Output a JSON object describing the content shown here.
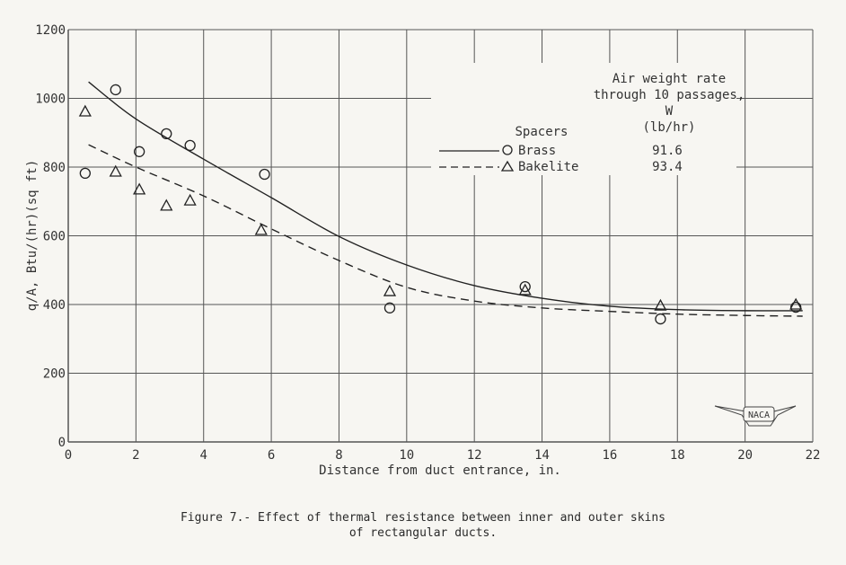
{
  "chart_data": {
    "type": "scatter",
    "xlabel": "Distance from duct entrance, in.",
    "ylabel": "q/A, Btu/(hr)(sq ft)",
    "xlim": [
      0,
      22
    ],
    "ylim": [
      0,
      1200
    ],
    "xticks": [
      0,
      2,
      4,
      6,
      8,
      10,
      12,
      14,
      16,
      18,
      20,
      22
    ],
    "yticks": [
      0,
      200,
      400,
      600,
      800,
      1000,
      1200
    ],
    "grid": true,
    "legend": {
      "placement": "top-right",
      "header_rate": [
        "Air weight rate",
        "through 10 passages,",
        "W",
        "(lb/hr)"
      ],
      "header_spacers": "Spacers"
    },
    "series": [
      {
        "name": "Brass",
        "rate": "91.6",
        "marker": "circle",
        "line": "solid",
        "points": [
          [
            0.5,
            782
          ],
          [
            1.4,
            1025
          ],
          [
            2.1,
            845
          ],
          [
            2.9,
            897
          ],
          [
            3.6,
            863
          ],
          [
            5.8,
            779
          ],
          [
            9.5,
            390
          ],
          [
            13.5,
            452
          ],
          [
            17.5,
            358
          ],
          [
            21.5,
            392
          ]
        ],
        "curve": [
          [
            0.6,
            1048
          ],
          [
            2,
            940
          ],
          [
            4,
            823
          ],
          [
            6,
            711
          ],
          [
            8,
            598
          ],
          [
            10,
            515
          ],
          [
            12,
            455
          ],
          [
            14,
            418
          ],
          [
            16,
            395
          ],
          [
            18,
            385
          ],
          [
            20,
            382
          ],
          [
            21.7,
            382
          ]
        ]
      },
      {
        "name": "Bakelite",
        "rate": "93.4",
        "marker": "triangle",
        "line": "dashed",
        "points": [
          [
            0.5,
            962
          ],
          [
            1.4,
            787
          ],
          [
            2.1,
            735
          ],
          [
            2.9,
            688
          ],
          [
            3.6,
            703
          ],
          [
            5.7,
            617
          ],
          [
            9.5,
            439
          ],
          [
            13.5,
            442
          ],
          [
            17.5,
            397
          ],
          [
            21.5,
            400
          ]
        ],
        "curve": [
          [
            0.6,
            865
          ],
          [
            2,
            800
          ],
          [
            4,
            716
          ],
          [
            6,
            620
          ],
          [
            8,
            528
          ],
          [
            10,
            450
          ],
          [
            12,
            410
          ],
          [
            14,
            390
          ],
          [
            16,
            380
          ],
          [
            18,
            372
          ],
          [
            20,
            368
          ],
          [
            21.7,
            366
          ]
        ]
      }
    ],
    "logo": "NACA"
  },
  "caption": [
    "Figure 7.- Effect of thermal resistance between inner and outer skins",
    "of rectangular ducts."
  ]
}
